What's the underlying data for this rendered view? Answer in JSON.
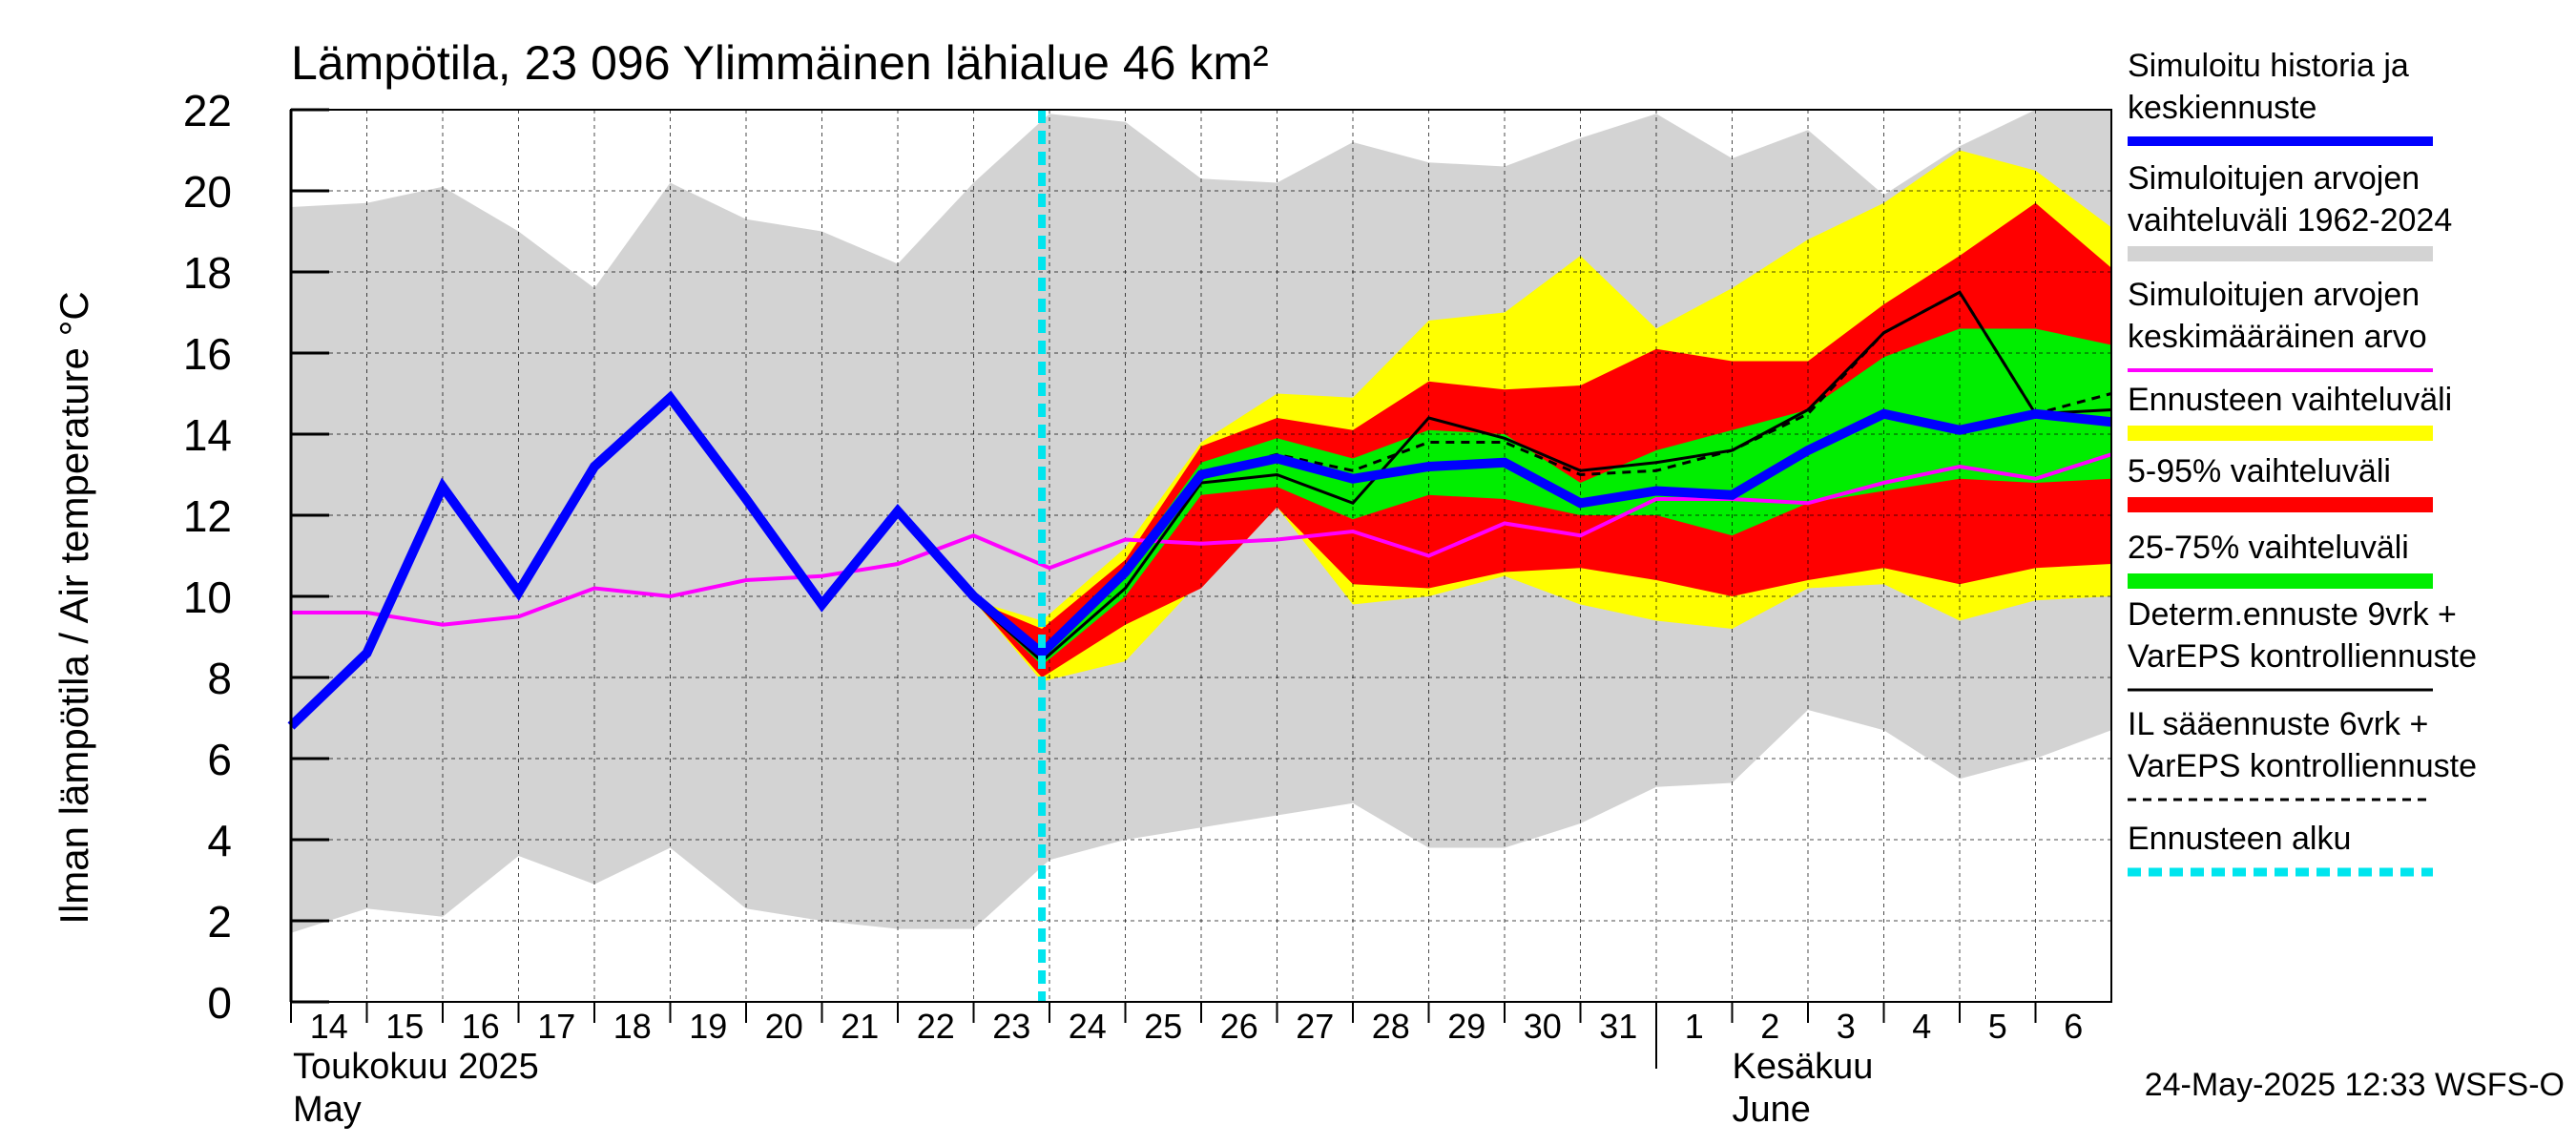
{
  "chart_data": {
    "type": "line",
    "title": "Lämpötila, 23 096 Ylimmäinen lähialue 46 km²",
    "ylabel": "Ilman lämpötila / Air temperature   °C",
    "ylim": [
      0,
      22
    ],
    "yticks": [
      0,
      2,
      4,
      6,
      8,
      10,
      12,
      14,
      16,
      18,
      20,
      22
    ],
    "x_day_labels": [
      "14",
      "15",
      "16",
      "17",
      "18",
      "19",
      "20",
      "21",
      "22",
      "23",
      "24",
      "25",
      "26",
      "27",
      "28",
      "29",
      "30",
      "31",
      "1",
      "2",
      "3",
      "4",
      "5",
      "6"
    ],
    "x_month_labels": [
      {
        "fi": "Toukokuu  2025",
        "en": "May"
      },
      {
        "fi": "Kesäkuu",
        "en": "June"
      }
    ],
    "timestamp": "24-May-2025 12:33 WSFS-O",
    "forecast_start_day": 23.9,
    "legend": [
      {
        "label": "Simuloitu historia ja keskiennuste",
        "lines": [
          "Simuloitu historia ja",
          "keskiennuste"
        ],
        "color": "#0000ff",
        "style": "solid-thick"
      },
      {
        "label": "Simuloitujen arvojen vaihteluväli 1962-2024",
        "lines": [
          "Simuloitujen arvojen",
          "vaihteluväli 1962-2024"
        ],
        "color": "#d3d3d3",
        "style": "band"
      },
      {
        "label": "Simuloitujen arvojen keskimääräinen arvo",
        "lines": [
          "Simuloitujen arvojen",
          "keskimääräinen arvo"
        ],
        "color": "#ff00ff",
        "style": "solid"
      },
      {
        "label": "Ennusteen vaihteluväli",
        "lines": [
          "Ennusteen vaihteluväli"
        ],
        "color": "#ffff00",
        "style": "band"
      },
      {
        "label": "5-95% vaihteluväli",
        "lines": [
          "5-95% vaihteluväli"
        ],
        "color": "#ff0000",
        "style": "band"
      },
      {
        "label": "25-75% vaihteluväli",
        "lines": [
          "25-75% vaihteluväli"
        ],
        "color": "#00ee00",
        "style": "band"
      },
      {
        "label": "Determ.ennuste 9vrk + VarEPS kontrolliennuste",
        "lines": [
          "Determ.ennuste 9vrk +",
          "VarEPS kontrolliennuste"
        ],
        "color": "#000000",
        "style": "solid-thin"
      },
      {
        "label": "IL sääennuste 6vrk + VarEPS kontrolliennuste",
        "lines": [
          "IL sääennuste 6vrk  +",
          "  VarEPS kontrolliennuste"
        ],
        "color": "#000000",
        "style": "dashed"
      },
      {
        "label": "Ennusteen alku",
        "lines": [
          "Ennusteen alku"
        ],
        "color": "#00e5ee",
        "style": "dashed-thick"
      }
    ],
    "series": [
      {
        "name": "Simuloitujen arvojen vaihteluväli 1962-2024",
        "type": "band",
        "color": "#d3d3d3",
        "x": [
          14,
          15,
          16,
          17,
          18,
          19,
          20,
          21,
          22,
          23,
          24,
          25,
          26,
          27,
          28,
          29,
          30,
          31,
          32,
          33,
          34,
          35,
          36,
          37,
          38
        ],
        "low": [
          1.7,
          2.3,
          2.1,
          3.6,
          2.9,
          3.8,
          2.3,
          2.0,
          1.8,
          1.8,
          3.5,
          4.0,
          4.3,
          4.6,
          4.9,
          3.8,
          3.8,
          4.4,
          5.3,
          5.4,
          7.2,
          6.7,
          5.5,
          6.0,
          6.7
        ],
        "high": [
          19.6,
          19.7,
          20.1,
          19.0,
          17.6,
          20.2,
          19.3,
          19.0,
          18.2,
          20.2,
          21.9,
          21.7,
          20.3,
          20.2,
          21.2,
          20.7,
          20.6,
          21.3,
          21.9,
          20.8,
          21.5,
          19.9,
          21.1,
          22.0,
          22.0
        ]
      },
      {
        "name": "Ennusteen vaihteluväli",
        "type": "band",
        "color": "#ffff00",
        "x": [
          23,
          23.9,
          25,
          26,
          27,
          28,
          29,
          30,
          31,
          32,
          33,
          34,
          35,
          36,
          37,
          38
        ],
        "low": [
          9.9,
          7.9,
          8.4,
          10.4,
          12.2,
          9.8,
          10.0,
          10.5,
          9.8,
          9.4,
          9.2,
          10.2,
          10.3,
          9.4,
          9.9,
          10.0
        ],
        "high": [
          9.9,
          9.4,
          11.2,
          13.8,
          15.0,
          14.9,
          16.8,
          17.0,
          18.4,
          16.6,
          17.6,
          18.8,
          19.7,
          21.0,
          20.5,
          19.1
        ]
      },
      {
        "name": "5-95% vaihteluväli",
        "type": "band",
        "color": "#ff0000",
        "x": [
          23,
          23.9,
          25,
          26,
          27,
          28,
          29,
          30,
          31,
          32,
          33,
          34,
          35,
          36,
          37,
          38
        ],
        "low": [
          9.9,
          8.0,
          9.3,
          10.2,
          12.2,
          10.3,
          10.2,
          10.6,
          10.7,
          10.4,
          10.0,
          10.4,
          10.7,
          10.3,
          10.7,
          10.8
        ],
        "high": [
          9.9,
          9.2,
          10.9,
          13.7,
          14.4,
          14.1,
          15.3,
          15.1,
          15.2,
          16.1,
          15.8,
          15.8,
          17.2,
          18.4,
          19.7,
          18.1
        ]
      },
      {
        "name": "25-75% vaihteluväli",
        "type": "band",
        "color": "#00ee00",
        "x": [
          23,
          23.9,
          25,
          26,
          27,
          28,
          29,
          30,
          31,
          32,
          33,
          34,
          35,
          36,
          37,
          38
        ],
        "low": [
          9.9,
          8.3,
          10.0,
          12.5,
          12.7,
          11.9,
          12.5,
          12.4,
          12.0,
          12.0,
          11.5,
          12.3,
          12.6,
          12.9,
          12.8,
          12.9
        ],
        "high": [
          9.9,
          8.7,
          10.7,
          13.3,
          13.9,
          13.4,
          14.1,
          14.0,
          12.8,
          13.6,
          14.1,
          14.6,
          15.9,
          16.6,
          16.6,
          16.2
        ]
      },
      {
        "name": "Simuloitujen arvojen keskimääräinen arvo",
        "type": "line",
        "color": "#ff00ff",
        "x": [
          14,
          15,
          16,
          17,
          18,
          19,
          20,
          21,
          22,
          23,
          24,
          25,
          26,
          27,
          28,
          29,
          30,
          31,
          32,
          33,
          34,
          35,
          36,
          37,
          38
        ],
        "y": [
          9.6,
          9.6,
          9.3,
          9.5,
          10.2,
          10.0,
          10.4,
          10.5,
          10.8,
          11.5,
          10.7,
          11.4,
          11.3,
          11.4,
          11.6,
          11.0,
          11.8,
          11.5,
          12.4,
          12.4,
          12.3,
          12.8,
          13.2,
          12.9,
          13.5
        ]
      },
      {
        "name": "IL sääennuste 6vrk + VarEPS kontrolliennuste",
        "type": "line",
        "color": "#000000",
        "dash": true,
        "x": [
          23,
          23.9,
          25,
          26,
          27,
          28,
          29,
          30,
          31,
          32,
          33,
          34,
          35,
          36,
          37,
          38
        ],
        "y": [
          9.9,
          8.6,
          10.6,
          13.0,
          13.5,
          13.1,
          13.8,
          13.8,
          13.0,
          13.1,
          13.6,
          14.5,
          16.5,
          17.5,
          14.5,
          15.0
        ]
      },
      {
        "name": "Determ.ennuste 9vrk + VarEPS kontrolliennuste",
        "type": "line",
        "color": "#000000",
        "x": [
          23,
          23.9,
          25,
          26,
          27,
          28,
          29,
          30,
          31,
          32,
          33,
          34,
          35,
          36,
          37,
          38
        ],
        "y": [
          9.9,
          8.4,
          10.2,
          12.8,
          13.0,
          12.3,
          14.4,
          13.9,
          13.1,
          13.3,
          13.6,
          14.6,
          16.5,
          17.5,
          14.5,
          14.6
        ]
      },
      {
        "name": "Simuloitu historia ja keskiennuste",
        "type": "line",
        "color": "#0000ff",
        "x": [
          14,
          15,
          16,
          17,
          18,
          19,
          20,
          21,
          22,
          23,
          23.9,
          25,
          26,
          27,
          28,
          29,
          30,
          31,
          32,
          33,
          34,
          35,
          36,
          37,
          38
        ],
        "y": [
          6.8,
          8.6,
          12.7,
          10.1,
          13.2,
          14.9,
          12.4,
          9.8,
          12.1,
          10.0,
          8.6,
          10.6,
          13.0,
          13.4,
          12.9,
          13.2,
          13.3,
          12.3,
          12.6,
          12.5,
          13.6,
          14.5,
          14.1,
          14.5,
          14.3
        ]
      }
    ]
  }
}
